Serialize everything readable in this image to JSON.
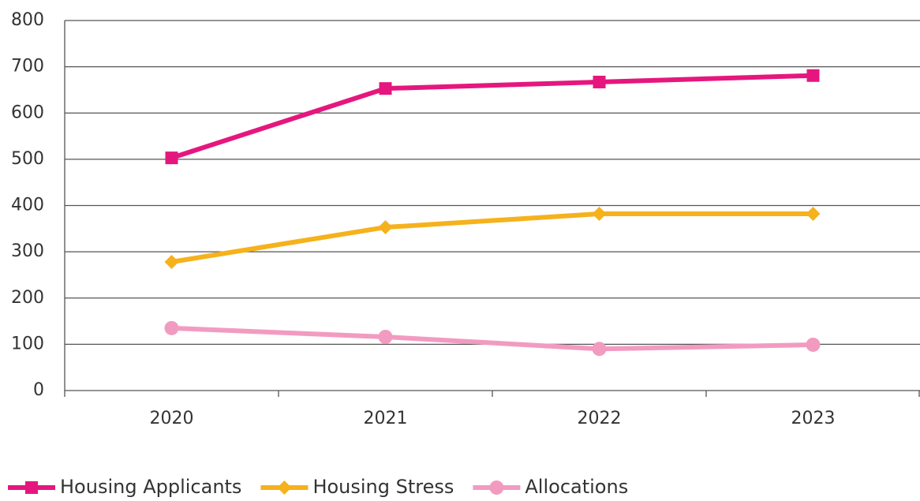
{
  "chart_data": {
    "type": "line",
    "categories": [
      "2020",
      "2021",
      "2022",
      "2023"
    ],
    "series": [
      {
        "name": "Housing Applicants",
        "color": "#e5177e",
        "marker": "square",
        "values": [
          503,
          653,
          667,
          681
        ]
      },
      {
        "name": "Housing Stress",
        "color": "#f5b21c",
        "marker": "diamond",
        "values": [
          278,
          353,
          382,
          382
        ]
      },
      {
        "name": "Allocations",
        "color": "#f29bc1",
        "marker": "circle",
        "values": [
          135,
          116,
          90,
          99
        ]
      }
    ],
    "ylim": [
      0,
      800
    ],
    "yticks": [
      0,
      100,
      200,
      300,
      400,
      500,
      600,
      700,
      800
    ],
    "grid": true,
    "legend": "bottom"
  }
}
